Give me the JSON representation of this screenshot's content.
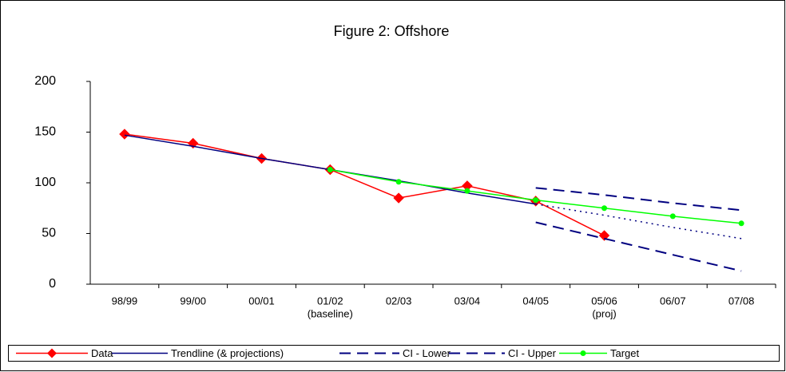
{
  "chart_data": {
    "type": "line",
    "title": "Figure 2: Offshore",
    "categories": [
      "98/99",
      "99/00",
      "00/01",
      "01/02",
      "02/03",
      "03/04",
      "04/05",
      "05/06",
      "06/07",
      "07/08"
    ],
    "category_sublabels": [
      null,
      null,
      null,
      "(baseline)",
      null,
      null,
      null,
      "(proj)",
      null,
      null
    ],
    "ylim": [
      0,
      200
    ],
    "yticks": [
      0,
      50,
      100,
      150,
      200
    ],
    "grid": false,
    "legend": "bottom",
    "series": [
      {
        "name": "Data",
        "color": "#ff0000",
        "style": "solid",
        "marker": "diamond",
        "values": [
          148,
          139,
          124,
          113,
          85,
          97,
          82,
          48,
          null,
          null
        ]
      },
      {
        "name": "Trendline (& projections)",
        "color": "#000080",
        "style": "solid",
        "marker": "none",
        "values": [
          147,
          136,
          124,
          113,
          102,
          90,
          79,
          null,
          null,
          null
        ]
      },
      {
        "name": "CI - Lower",
        "color": "#000080",
        "style": "dashed",
        "marker": "none",
        "values": [
          null,
          null,
          null,
          null,
          null,
          null,
          61,
          45,
          29,
          13
        ]
      },
      {
        "name": "CI - Upper",
        "color": "#000080",
        "style": "dashed",
        "marker": "none",
        "values": [
          null,
          null,
          null,
          null,
          null,
          null,
          95,
          88,
          80,
          73
        ]
      },
      {
        "name": "Target",
        "color": "#00ff00",
        "style": "solid",
        "marker": "circle",
        "values": [
          null,
          null,
          null,
          113,
          101,
          92,
          83,
          75,
          67,
          60
        ]
      },
      {
        "color": "#000080",
        "style": "dotted",
        "marker": "none",
        "values": [
          null,
          null,
          null,
          null,
          null,
          null,
          79,
          68,
          56,
          45
        ]
      }
    ]
  }
}
